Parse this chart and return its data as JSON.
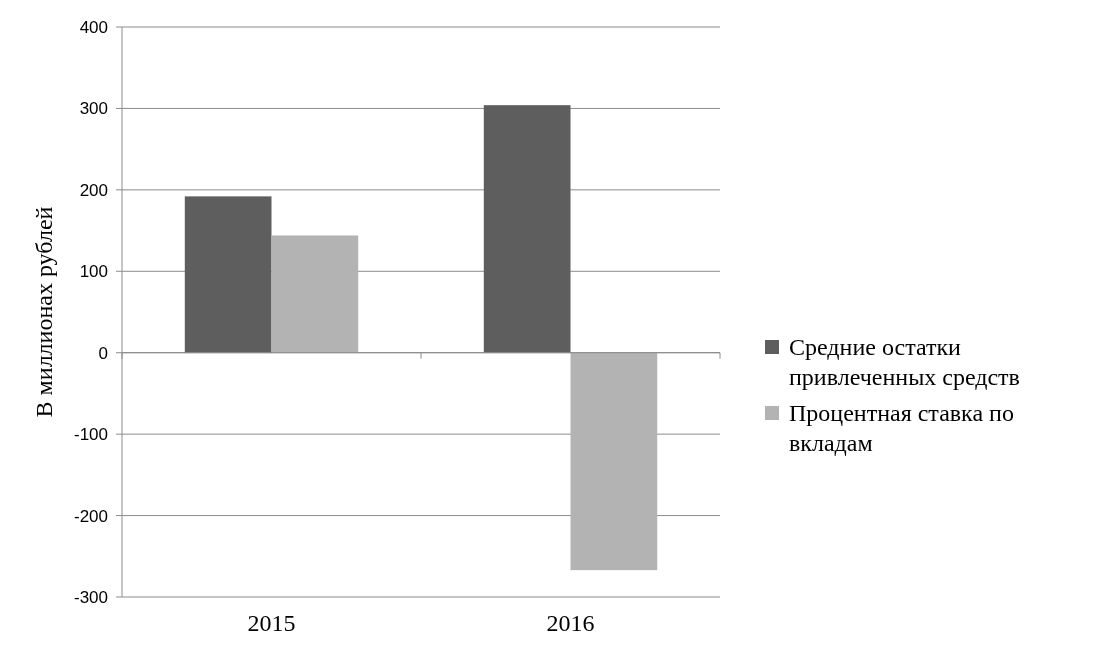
{
  "chart_data": {
    "type": "bar",
    "ylabel": "В миллионах рублей",
    "categories": [
      "2015",
      "2016"
    ],
    "series": [
      {
        "name": "Средние остатки привлеченных средств",
        "color": "#5e5e5e",
        "values": [
          192,
          304
        ]
      },
      {
        "name": "Процентная ставка по вкладам",
        "color": "#b3b3b3",
        "values": [
          144,
          -267
        ]
      }
    ],
    "ylim": [
      -300,
      400
    ],
    "yticks": [
      -300,
      -200,
      -100,
      0,
      100,
      200,
      300,
      400
    ],
    "grid": "y",
    "legend": "right"
  }
}
